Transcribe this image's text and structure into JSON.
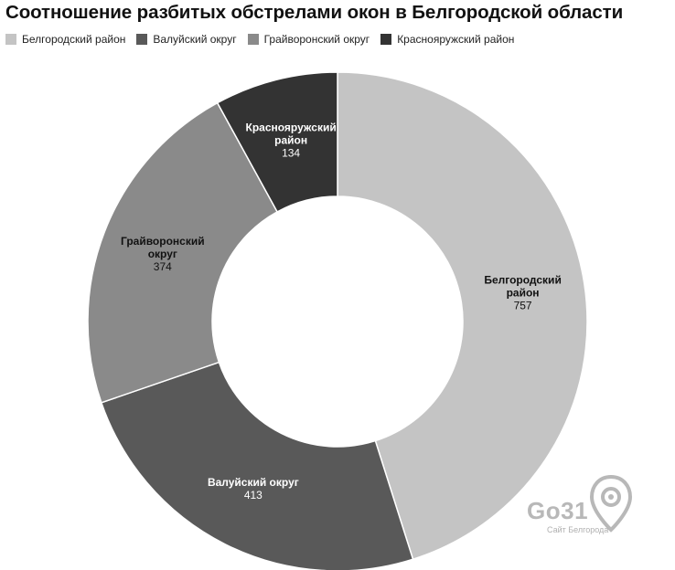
{
  "title": "Соотношение разбитых обстрелами окон в Белгородской области",
  "watermark": {
    "logo": "Go31",
    "tagline": "Сайт Белгорода"
  },
  "chart_data": {
    "type": "pie",
    "subtype": "donut",
    "title": "Соотношение разбитых обстрелами окон в Белгородской области",
    "legend_position": "top-left",
    "categories": [
      "Белгородский район",
      "Валуйский округ",
      "Грайворонский округ",
      "Краснояружский район"
    ],
    "values": [
      757,
      413,
      374,
      134
    ],
    "colors": [
      "#c4c4c4",
      "#595959",
      "#8a8a8a",
      "#333333"
    ],
    "label_colors": [
      "#111111",
      "#ffffff",
      "#111111",
      "#ffffff"
    ],
    "slice_labels": [
      [
        "Белгородский",
        "район"
      ],
      [
        "Валуйский округ"
      ],
      [
        "Грайворонский",
        "округ"
      ],
      [
        "Краснояружский",
        "район"
      ]
    ]
  }
}
